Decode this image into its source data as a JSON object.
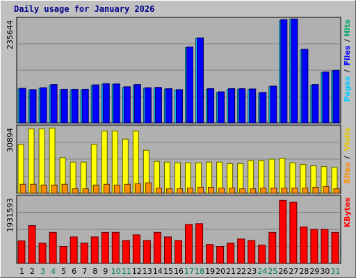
{
  "chart_data": {
    "type": "bar",
    "title": "Daily usage for January 2026",
    "categories": [
      "1",
      "2",
      "3",
      "4",
      "5",
      "6",
      "7",
      "8",
      "9",
      "10",
      "11",
      "12",
      "13",
      "14",
      "15",
      "16",
      "17",
      "18",
      "19",
      "20",
      "21",
      "22",
      "23",
      "24",
      "25",
      "26",
      "27",
      "28",
      "29",
      "30",
      "31"
    ],
    "weekend_days": [
      "3",
      "4",
      "10",
      "11",
      "17",
      "18",
      "24",
      "25",
      "31"
    ],
    "panels": [
      {
        "name": "pages-files-hits",
        "ymax_label": "235644",
        "ylim": [
          0,
          335000
        ],
        "legend": [
          "Pages",
          "Files",
          "Hits"
        ],
        "series": [
          {
            "name": "Hits",
            "color": "#00ccff",
            "values": [
              108000,
              104000,
              110000,
              120000,
              105000,
              105000,
              105000,
              119000,
              123000,
              122000,
              113000,
              120000,
              110000,
              111000,
              107000,
              104000,
              239000,
              268000,
              107000,
              97000,
              107000,
              107000,
              106000,
              95000,
              115000,
              324000,
              329000,
              232000,
              120000,
              160000,
              165000
            ]
          },
          {
            "name": "Files",
            "color": "#0000ff",
            "values": [
              110000,
              106000,
              112000,
              122000,
              107000,
              107000,
              107000,
              121000,
              125000,
              124000,
              115000,
              122000,
              112000,
              113000,
              109000,
              106000,
              241000,
              270000,
              109000,
              99000,
              109000,
              109000,
              108000,
              97000,
              117000,
              328000,
              330000,
              234000,
              122000,
              162000,
              167000
            ]
          }
        ]
      },
      {
        "name": "visits-sites",
        "ymax_label": "30894",
        "ylim": [
          0,
          46000
        ],
        "legend": [
          "Sites",
          "Visits"
        ],
        "series": [
          {
            "name": "Visits",
            "color": "#ffff00",
            "values": [
              33000,
              43500,
              43500,
              44000,
              24000,
              21000,
              21000,
              33000,
              42000,
              42000,
              36500,
              42000,
              29000,
              21500,
              21000,
              20500,
              20500,
              20500,
              21000,
              21000,
              20000,
              20000,
              22000,
              22000,
              23000,
              23500,
              20500,
              19500,
              18500,
              18000,
              17500
            ]
          },
          {
            "name": "Sites",
            "color": "#ff8c00",
            "values": [
              6000,
              6000,
              5500,
              5500,
              6000,
              3000,
              3000,
              5500,
              6000,
              5500,
              6000,
              6500,
              7000,
              3500,
              3000,
              3000,
              3500,
              4000,
              4000,
              3500,
              3500,
              3000,
              3000,
              3500,
              3500,
              3500,
              3500,
              3500,
              4000,
              4500,
              3000
            ]
          }
        ]
      },
      {
        "name": "kbytes",
        "ymax_label": "1931593",
        "ylim": [
          0,
          3600000
        ],
        "legend": [
          "KBytes"
        ],
        "series": [
          {
            "name": "KBytes",
            "color": "#ff0000",
            "values": [
              1190000,
              2000000,
              1070000,
              1640000,
              900000,
              1400000,
              1070000,
              1400000,
              1640000,
              1640000,
              1210000,
              1510000,
              1210000,
              1640000,
              1400000,
              1210000,
              2060000,
              2100000,
              1000000,
              900000,
              1070000,
              1290000,
              1210000,
              970000,
              1640000,
              3330000,
              3230000,
              1930000,
              1800000,
              1800000,
              1640000
            ]
          }
        ]
      }
    ]
  },
  "colors": {
    "background": "#c0c0c0",
    "plot_bg": "#b0b0b0",
    "grid": "#808080",
    "weekday_label": "#000000",
    "weekend_label": "#00804a",
    "legend_pages": "#00ccff",
    "legend_files": "#0000ff",
    "legend_hits": "#00aa66",
    "legend_sites": "#ff8c00",
    "legend_visits": "#e6c800",
    "legend_kbytes": "#ff0000"
  }
}
